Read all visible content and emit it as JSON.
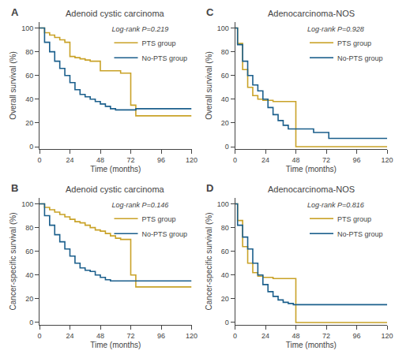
{
  "chart_data": [
    {
      "type": "step",
      "title": "Adenoid cystic carcinoma",
      "annotations": [
        "A"
      ],
      "x_label": "Time (months)",
      "y_label": "Overall survival (%)",
      "legend_title": "Log-rank P=0.219",
      "legend": "upper right",
      "grid": false,
      "xlim": [
        0,
        120
      ],
      "ylim": [
        -2,
        105
      ],
      "xticks": [
        0,
        24,
        48,
        72,
        96,
        120
      ],
      "yticks": [
        0,
        20,
        40,
        60,
        80,
        100
      ],
      "series": [
        {
          "name": "PTS group",
          "color": "#C9A227",
          "x": [
            0,
            4,
            8,
            12,
            16,
            20,
            24,
            28,
            32,
            36,
            40,
            44,
            48,
            52,
            56,
            60,
            64,
            68,
            72,
            76,
            96,
            120
          ],
          "values": [
            100,
            96,
            94,
            92,
            90,
            88,
            76,
            75,
            74,
            73,
            72,
            72,
            64,
            64,
            64,
            64,
            62,
            62,
            35,
            26,
            26,
            26
          ]
        },
        {
          "name": "No-PTS group",
          "color": "#1B5F8C",
          "x": [
            0,
            4,
            8,
            12,
            16,
            20,
            24,
            28,
            32,
            36,
            40,
            44,
            48,
            52,
            56,
            60,
            64,
            68,
            72,
            76,
            96,
            120
          ],
          "values": [
            100,
            88,
            80,
            72,
            66,
            60,
            54,
            48,
            44,
            42,
            40,
            38,
            36,
            34,
            32,
            31,
            31,
            31,
            31,
            32,
            32,
            32
          ]
        }
      ]
    },
    {
      "type": "step",
      "title": "Adenocarcinoma-NOS",
      "annotations": [
        "C"
      ],
      "x_label": "Time (months)",
      "y_label": "Overall survival (%)",
      "legend_title": "Log-rank P=0.928",
      "legend": "upper right",
      "grid": false,
      "xlim": [
        0,
        120
      ],
      "ylim": [
        -2,
        105
      ],
      "xticks": [
        0,
        24,
        48,
        72,
        96,
        120
      ],
      "yticks": [
        0,
        20,
        40,
        60,
        80,
        100
      ],
      "series": [
        {
          "name": "PTS group",
          "color": "#C9A227",
          "x": [
            0,
            2,
            6,
            10,
            14,
            18,
            22,
            26,
            30,
            34,
            38,
            42,
            46,
            48,
            96,
            120
          ],
          "values": [
            100,
            87,
            65,
            50,
            43,
            40,
            39,
            39,
            38,
            38,
            38,
            38,
            38,
            0,
            0,
            0
          ]
        },
        {
          "name": "No-PTS group",
          "color": "#1B5F8C",
          "x": [
            0,
            2,
            6,
            10,
            14,
            18,
            22,
            26,
            30,
            34,
            38,
            42,
            46,
            50,
            54,
            58,
            62,
            66,
            70,
            74,
            78,
            96,
            120
          ],
          "values": [
            100,
            86,
            72,
            60,
            52,
            47,
            40,
            33,
            27,
            22,
            18,
            15,
            15,
            15,
            15,
            15,
            12,
            12,
            12,
            7,
            7,
            7,
            7
          ]
        }
      ]
    },
    {
      "type": "step",
      "title": "Adenoid cystic carcinoma",
      "annotations": [
        "B"
      ],
      "x_label": "Time (months)",
      "y_label": "Cancer-specific survival (%)",
      "legend_title": "Log-rank P=0.146",
      "legend": "upper right",
      "grid": false,
      "xlim": [
        0,
        120
      ],
      "ylim": [
        -2,
        105
      ],
      "xticks": [
        0,
        24,
        48,
        72,
        96,
        120
      ],
      "yticks": [
        0,
        20,
        40,
        60,
        80,
        100
      ],
      "series": [
        {
          "name": "PTS group",
          "color": "#C9A227",
          "x": [
            0,
            4,
            8,
            12,
            16,
            20,
            24,
            28,
            32,
            36,
            40,
            44,
            48,
            52,
            56,
            60,
            64,
            68,
            72,
            76,
            96,
            120
          ],
          "values": [
            100,
            97,
            95,
            93,
            91,
            89,
            87,
            85,
            84,
            82,
            80,
            78,
            77,
            75,
            73,
            71,
            70,
            70,
            40,
            30,
            30,
            30
          ]
        },
        {
          "name": "No-PTS group",
          "color": "#1B5F8C",
          "x": [
            0,
            4,
            8,
            12,
            16,
            20,
            24,
            28,
            32,
            36,
            40,
            44,
            48,
            52,
            56,
            60,
            64,
            68,
            72,
            76,
            96,
            120
          ],
          "values": [
            100,
            90,
            82,
            74,
            68,
            62,
            56,
            50,
            46,
            44,
            43,
            40,
            38,
            36,
            35,
            35,
            35,
            35,
            35,
            35,
            35,
            35
          ]
        }
      ]
    },
    {
      "type": "step",
      "title": "Adenocarcinoma-NOS",
      "annotations": [
        "D"
      ],
      "x_label": "Time (months)",
      "y_label": "Cancer-specific survival (%)",
      "legend_title": "Log-rank P=0.816",
      "legend": "upper right",
      "grid": false,
      "xlim": [
        0,
        120
      ],
      "ylim": [
        -2,
        105
      ],
      "xticks": [
        0,
        24,
        48,
        72,
        96,
        120
      ],
      "yticks": [
        0,
        20,
        40,
        60,
        80,
        100
      ],
      "series": [
        {
          "name": "PTS group",
          "color": "#C9A227",
          "x": [
            0,
            2,
            6,
            10,
            14,
            18,
            22,
            26,
            30,
            34,
            38,
            42,
            46,
            48,
            96,
            120
          ],
          "values": [
            100,
            86,
            64,
            50,
            42,
            39,
            38,
            38,
            37,
            37,
            37,
            37,
            37,
            0,
            0,
            0
          ]
        },
        {
          "name": "No-PTS group",
          "color": "#1B5F8C",
          "x": [
            0,
            2,
            6,
            10,
            14,
            18,
            22,
            26,
            30,
            34,
            38,
            42,
            46,
            48,
            52,
            56,
            60,
            64,
            68,
            72,
            96,
            120
          ],
          "values": [
            100,
            82,
            72,
            62,
            50,
            40,
            32,
            26,
            22,
            19,
            17,
            16,
            15,
            15,
            15,
            15,
            15,
            15,
            15,
            15,
            15,
            15
          ]
        }
      ]
    }
  ]
}
